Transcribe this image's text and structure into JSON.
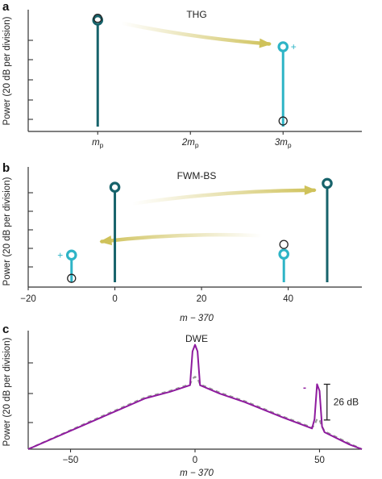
{
  "chart_data": [
    {
      "panel": "a",
      "type": "scatter",
      "title": "THG",
      "ylabel": "Power (20 dB per division)",
      "xticks": [
        {
          "x": 1,
          "label": "m",
          "sub": "p"
        },
        {
          "x": 2,
          "label": "2m",
          "sub": "p"
        },
        {
          "x": 3,
          "label": "3m",
          "sub": "p"
        }
      ],
      "xlim": [
        0.25,
        3.85
      ],
      "ylim": [
        0,
        6.4
      ],
      "lines": [
        {
          "x": 1,
          "top": 5.85,
          "color": "#17636b",
          "marker": "#17636b"
        },
        {
          "x": 3,
          "top": 4.45,
          "color": "#2eb4c6",
          "marker": "#2eb4c6"
        }
      ],
      "open_circles": [
        {
          "x": 1,
          "y": 5.95
        },
        {
          "x": 3,
          "y": 0.55
        }
      ],
      "signs": [
        {
          "x": 3,
          "y": 4.45,
          "text": "+"
        }
      ],
      "arrows": [
        {
          "from": [
            1.25,
            5.7
          ],
          "to": [
            2.85,
            4.6
          ]
        }
      ]
    },
    {
      "panel": "b",
      "type": "scatter",
      "title": "FWM-BS",
      "ylabel": "Power (20 dB per division)",
      "xlabel": "m − 370",
      "xticks": [
        {
          "x": -20,
          "label": "−20"
        },
        {
          "x": 0,
          "label": "0"
        },
        {
          "x": 20,
          "label": "20"
        },
        {
          "x": 40,
          "label": "40"
        }
      ],
      "xlim": [
        -20,
        57
      ],
      "ylim": [
        0,
        6.2
      ],
      "lines": [
        {
          "x": 0,
          "top": 5.15,
          "color": "#17636b",
          "marker": "#17636b"
        },
        {
          "x": 49,
          "top": 5.35,
          "color": "#17636b",
          "marker": "#17636b"
        },
        {
          "x": -10,
          "top": 1.65,
          "color": "#2eb4c6",
          "marker": "#2eb4c6"
        },
        {
          "x": 39,
          "top": 1.7,
          "color": "#2eb4c6",
          "marker": "#2eb4c6"
        }
      ],
      "open_circles": [
        {
          "x": -10,
          "y": 0.45
        },
        {
          "x": 39,
          "y": 2.2
        }
      ],
      "signs": [
        {
          "x": -10,
          "y": 1.65,
          "text": "+"
        }
      ],
      "arrows": [
        {
          "from": [
            4,
            4.3
          ],
          "to": [
            46,
            5.0
          ]
        },
        {
          "from": [
            34,
            2.65
          ],
          "to": [
            -3,
            2.35
          ]
        }
      ]
    },
    {
      "panel": "c",
      "type": "line",
      "title": "DWE",
      "ylabel": "Power (20 dB per division)",
      "xlabel": "m − 370",
      "xticks": [
        {
          "x": -50,
          "label": "−50"
        },
        {
          "x": 0,
          "label": "0"
        },
        {
          "x": 50,
          "label": "50"
        }
      ],
      "xlim": [
        -67,
        67
      ],
      "ylim": [
        0,
        6.3
      ],
      "series": [
        {
          "style": "dashed",
          "color": "#9a9a9a",
          "x": [
            -67,
            -40,
            -20,
            -10,
            -2,
            -1,
            0,
            1,
            2,
            10,
            20,
            35,
            47,
            48,
            49,
            50,
            51,
            52,
            62,
            67
          ],
          "y": [
            -0.2,
            1.6,
            2.75,
            3.1,
            3.45,
            3.75,
            3.85,
            3.75,
            3.45,
            3.0,
            2.55,
            1.75,
            1.15,
            1.3,
            1.6,
            1.55,
            1.2,
            0.95,
            0.3,
            -0.05
          ]
        },
        {
          "style": "solid",
          "color": "#8e1a9e",
          "x": [
            -67,
            -40,
            -20,
            -10,
            -2,
            -1,
            0,
            1,
            2,
            10,
            20,
            35,
            47,
            48,
            49,
            50,
            51,
            52,
            62,
            67
          ],
          "y": [
            -0.2,
            1.55,
            2.7,
            3.05,
            3.4,
            5.2,
            5.55,
            5.2,
            3.4,
            2.95,
            2.5,
            1.7,
            1.1,
            1.6,
            3.45,
            3.1,
            1.2,
            0.9,
            0.25,
            -0.1
          ]
        }
      ],
      "annotations": {
        "minus_sign": "-",
        "minus_color": "#8e1a9e",
        "bracket_text": "26 dB",
        "bracket_range": [
          1.55,
          3.45
        ]
      }
    }
  ]
}
